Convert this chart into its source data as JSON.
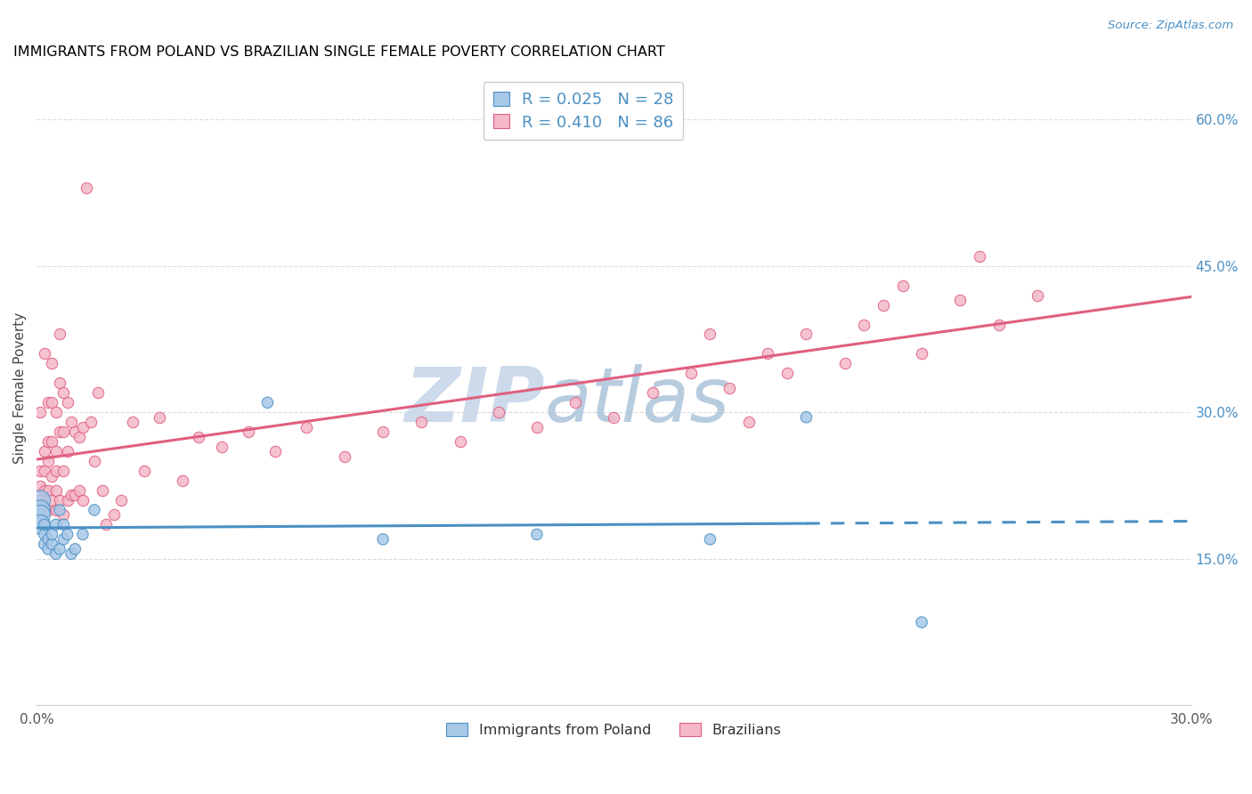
{
  "title": "IMMIGRANTS FROM POLAND VS BRAZILIAN SINGLE FEMALE POVERTY CORRELATION CHART",
  "source": "Source: ZipAtlas.com",
  "ylabel": "Single Female Poverty",
  "x_min": 0.0,
  "x_max": 0.3,
  "y_min": 0.0,
  "y_max": 0.65,
  "y_ticks_right": [
    0.15,
    0.3,
    0.45,
    0.6
  ],
  "y_tick_labels_right": [
    "15.0%",
    "30.0%",
    "45.0%",
    "60.0%"
  ],
  "legend_label1": "R = 0.025   N = 28",
  "legend_label2": "R = 0.410   N = 86",
  "legend_label_bottom1": "Immigrants from Poland",
  "legend_label_bottom2": "Brazilians",
  "color_blue": "#a8c8e8",
  "color_pink": "#f4b8c8",
  "color_blue_dark": "#4a90c4",
  "color_pink_dark": "#e06080",
  "watermark": "ZIPAtlas",
  "watermark_color_zip": "#c8d8ea",
  "watermark_color_atlas": "#b0c8e0",
  "poland_x": [
    0.001,
    0.001,
    0.001,
    0.001,
    0.002,
    0.002,
    0.002,
    0.003,
    0.003,
    0.004,
    0.004,
    0.005,
    0.005,
    0.006,
    0.006,
    0.007,
    0.007,
    0.008,
    0.009,
    0.01,
    0.012,
    0.015,
    0.06,
    0.09,
    0.13,
    0.175,
    0.2,
    0.23
  ],
  "poland_y": [
    0.21,
    0.2,
    0.195,
    0.185,
    0.175,
    0.165,
    0.185,
    0.17,
    0.16,
    0.165,
    0.175,
    0.155,
    0.185,
    0.2,
    0.16,
    0.185,
    0.17,
    0.175,
    0.155,
    0.16,
    0.175,
    0.2,
    0.31,
    0.17,
    0.175,
    0.17,
    0.295,
    0.085
  ],
  "brazil_x": [
    0.001,
    0.001,
    0.001,
    0.001,
    0.001,
    0.002,
    0.002,
    0.002,
    0.002,
    0.002,
    0.003,
    0.003,
    0.003,
    0.003,
    0.003,
    0.004,
    0.004,
    0.004,
    0.004,
    0.004,
    0.005,
    0.005,
    0.005,
    0.005,
    0.005,
    0.006,
    0.006,
    0.006,
    0.006,
    0.007,
    0.007,
    0.007,
    0.007,
    0.008,
    0.008,
    0.008,
    0.009,
    0.009,
    0.01,
    0.01,
    0.011,
    0.011,
    0.012,
    0.012,
    0.013,
    0.014,
    0.015,
    0.016,
    0.017,
    0.018,
    0.02,
    0.022,
    0.025,
    0.028,
    0.032,
    0.038,
    0.042,
    0.048,
    0.055,
    0.062,
    0.07,
    0.08,
    0.09,
    0.1,
    0.11,
    0.12,
    0.13,
    0.14,
    0.15,
    0.16,
    0.17,
    0.175,
    0.18,
    0.185,
    0.19,
    0.195,
    0.2,
    0.21,
    0.215,
    0.22,
    0.225,
    0.23,
    0.24,
    0.245,
    0.25,
    0.26
  ],
  "brazil_y": [
    0.24,
    0.225,
    0.21,
    0.195,
    0.3,
    0.26,
    0.24,
    0.22,
    0.2,
    0.36,
    0.31,
    0.27,
    0.25,
    0.22,
    0.2,
    0.35,
    0.31,
    0.27,
    0.235,
    0.21,
    0.3,
    0.26,
    0.24,
    0.22,
    0.2,
    0.38,
    0.33,
    0.28,
    0.21,
    0.32,
    0.28,
    0.24,
    0.195,
    0.31,
    0.26,
    0.21,
    0.29,
    0.215,
    0.28,
    0.215,
    0.275,
    0.22,
    0.285,
    0.21,
    0.53,
    0.29,
    0.25,
    0.32,
    0.22,
    0.185,
    0.195,
    0.21,
    0.29,
    0.24,
    0.295,
    0.23,
    0.275,
    0.265,
    0.28,
    0.26,
    0.285,
    0.255,
    0.28,
    0.29,
    0.27,
    0.3,
    0.285,
    0.31,
    0.295,
    0.32,
    0.34,
    0.38,
    0.325,
    0.29,
    0.36,
    0.34,
    0.38,
    0.35,
    0.39,
    0.41,
    0.43,
    0.36,
    0.415,
    0.46,
    0.39,
    0.42
  ],
  "brazil_size_default": 80,
  "poland_size_default": 80,
  "poland_large_size": 250
}
